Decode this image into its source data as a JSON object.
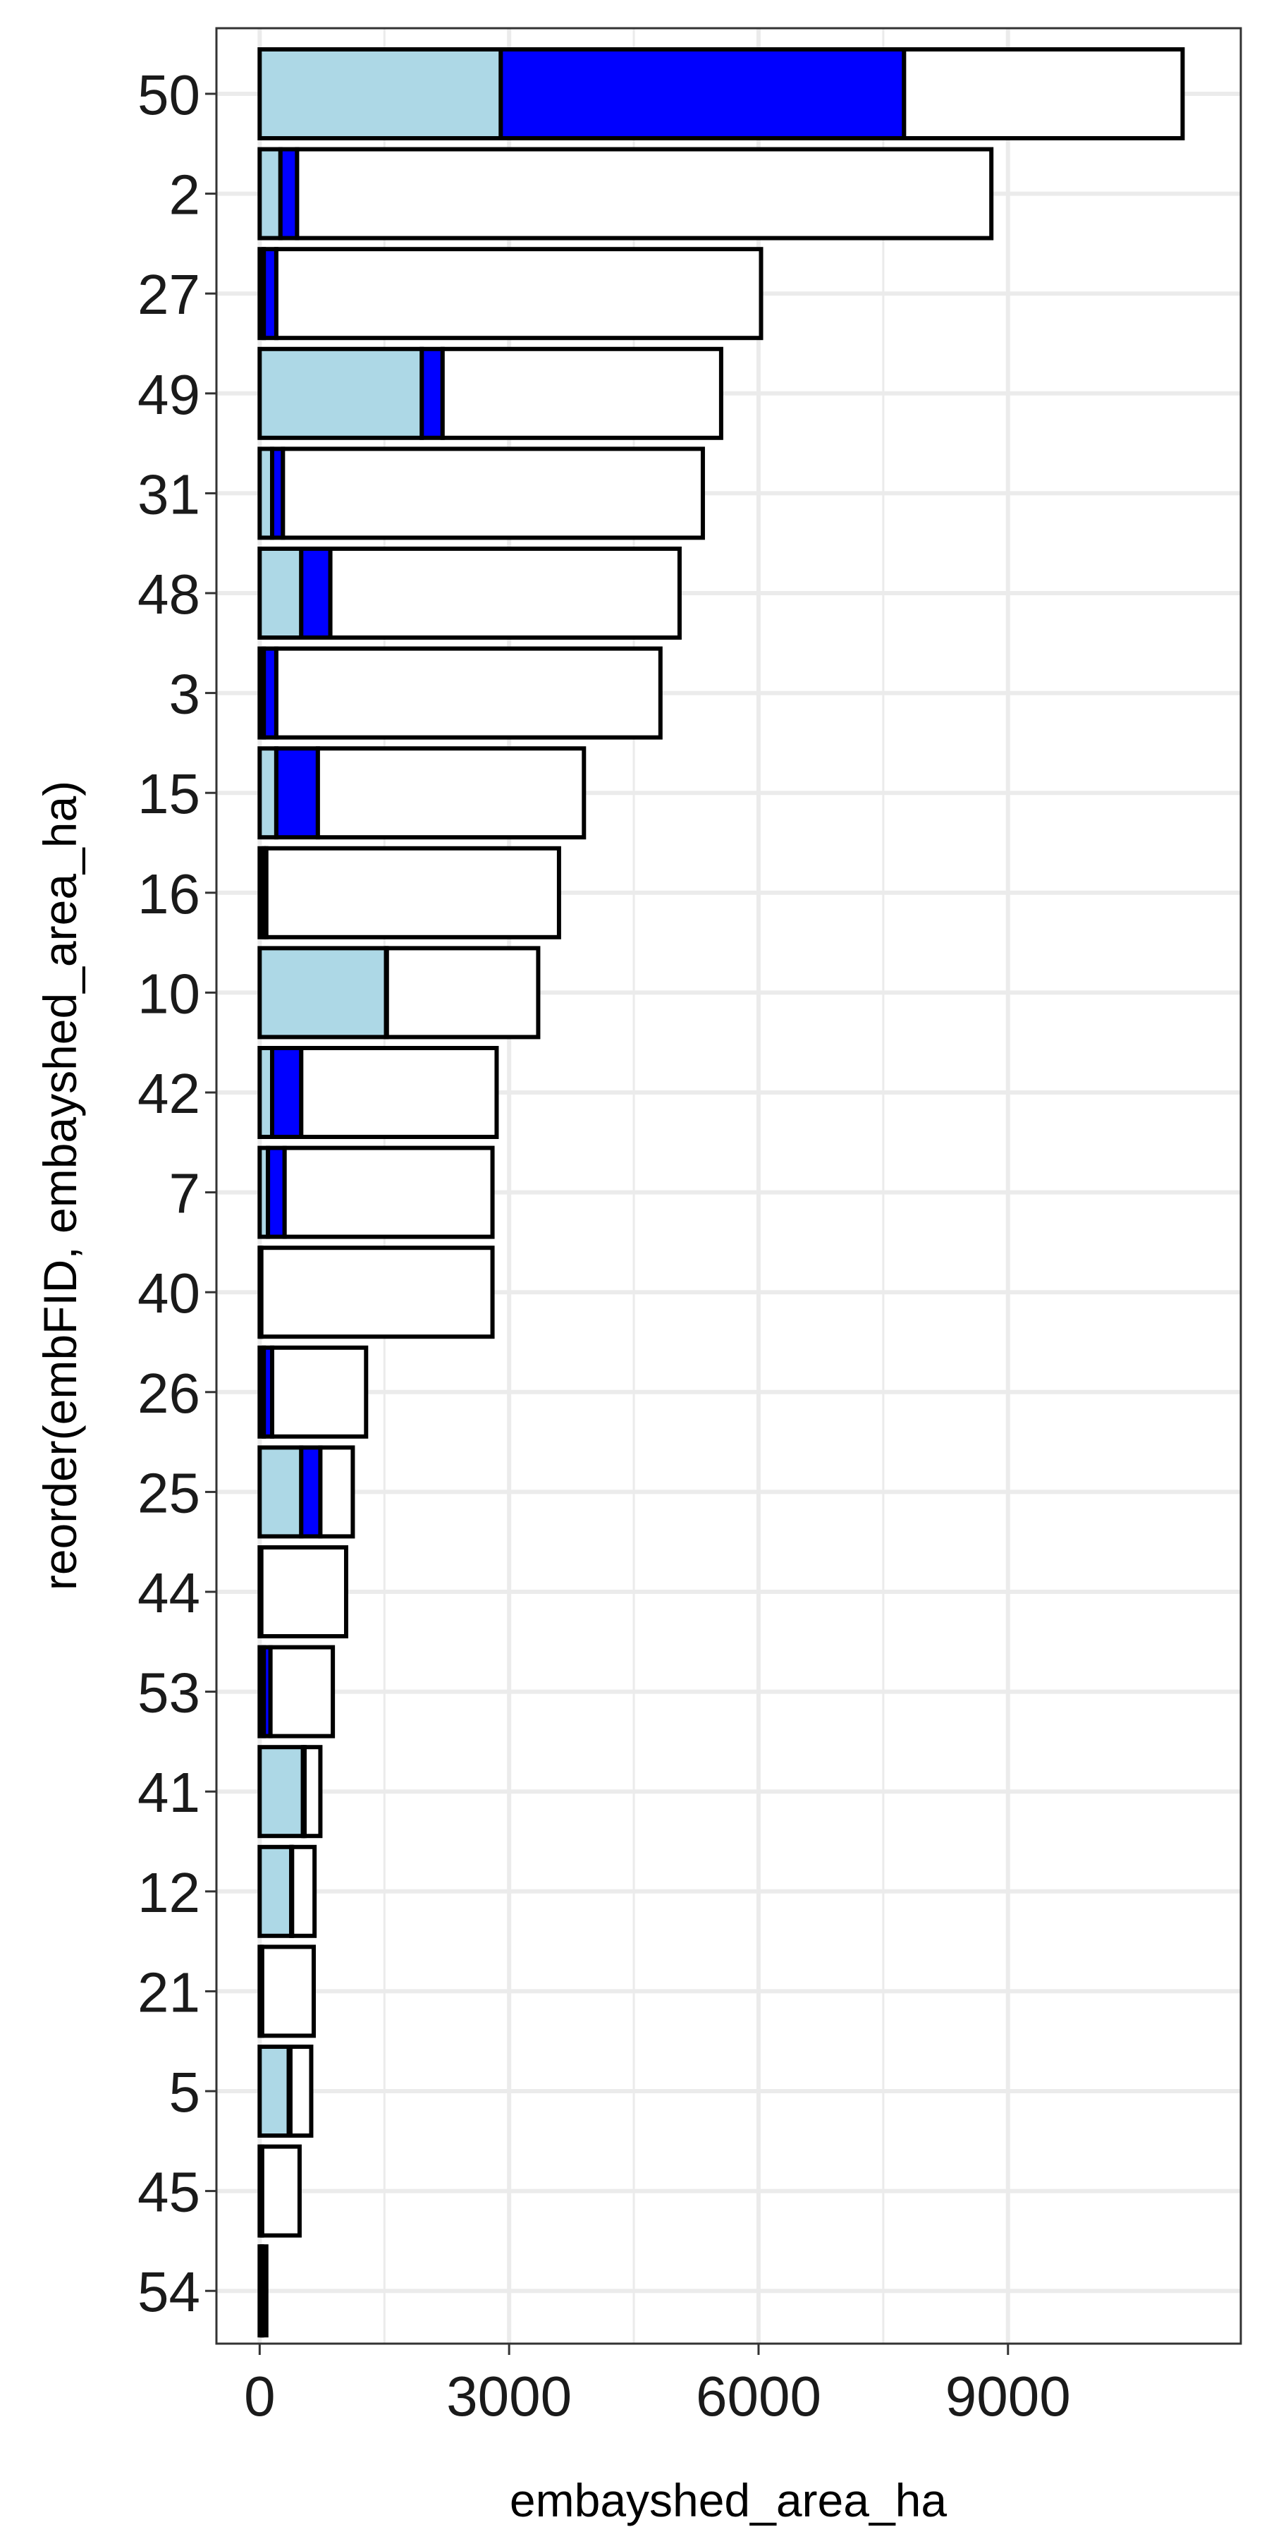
{
  "chart_data": {
    "type": "bar",
    "orientation": "horizontal",
    "stacked": true,
    "xlabel": "embayshed_area_ha",
    "ylabel": "reorder(embFID, embayshed_area_ha)",
    "xlim": [
      -520,
      11800
    ],
    "x_ticks": [
      0,
      3000,
      6000,
      9000
    ],
    "x_tick_labels": [
      "0",
      "3000",
      "6000",
      "9000"
    ],
    "grid": true,
    "legend": "none",
    "colors": {
      "segment_1": "#add8e6",
      "segment_2": "#0000ff",
      "segment_3": "#ffffff",
      "outline": "#000000",
      "grid": "#ebebeb",
      "panel_border": "#333333"
    },
    "categories": [
      "50",
      "2",
      "27",
      "49",
      "31",
      "48",
      "3",
      "15",
      "16",
      "10",
      "42",
      "7",
      "40",
      "26",
      "25",
      "44",
      "53",
      "41",
      "12",
      "21",
      "5",
      "45",
      "54"
    ],
    "series": [
      {
        "values": [
          2900,
          250,
          50,
          1950,
          150,
          500,
          50,
          200,
          50,
          1520,
          150,
          100,
          10,
          50,
          500,
          10,
          50,
          520,
          380,
          20,
          350,
          20,
          20
        ]
      },
      {
        "values": [
          4850,
          200,
          150,
          250,
          130,
          350,
          150,
          500,
          30,
          10,
          350,
          200,
          10,
          100,
          230,
          10,
          80,
          20,
          10,
          10,
          20,
          10,
          10
        ]
      },
      {
        "values": [
          3350,
          8350,
          5830,
          3350,
          5050,
          4200,
          4620,
          3200,
          3520,
          1820,
          2350,
          2500,
          2780,
          1130,
          390,
          1020,
          750,
          190,
          270,
          620,
          250,
          450,
          50
        ]
      }
    ]
  }
}
